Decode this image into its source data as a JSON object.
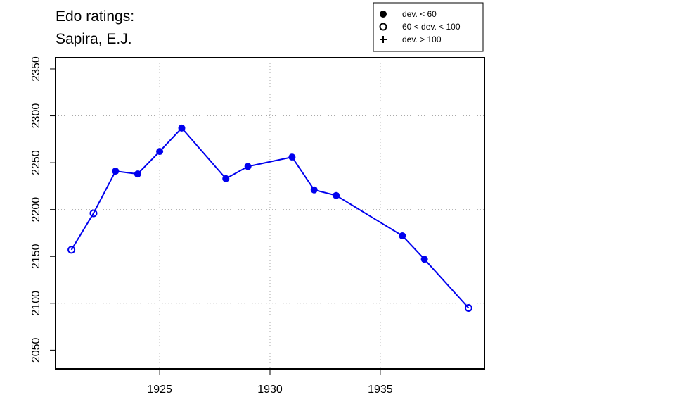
{
  "chart_data": {
    "type": "line",
    "title": [
      "Edo ratings:",
      "Sapira, E.J."
    ],
    "x": [
      1921,
      1922,
      1923,
      1924,
      1925,
      1926,
      1928,
      1929,
      1931,
      1932,
      1933,
      1936,
      1937,
      1939
    ],
    "series": [
      {
        "color": "#0000ee",
        "values": [
          2157,
          2196,
          2241,
          2238,
          2262,
          2287,
          2233,
          2246,
          2256,
          2221,
          2215,
          2172,
          2147,
          2095
        ],
        "markers": [
          "open",
          "open",
          "filled",
          "filled",
          "filled",
          "filled",
          "filled",
          "filled",
          "filled",
          "filled",
          "filled",
          "filled",
          "filled",
          "open"
        ]
      }
    ],
    "xlim": [
      1920.28,
      1939.72
    ],
    "ylim": [
      2030,
      2362
    ],
    "xticks": [
      1925,
      1930,
      1935
    ],
    "yticks": [
      2050,
      2100,
      2150,
      2200,
      2250,
      2300,
      2350
    ],
    "xgrid": [
      1925,
      1930,
      1935
    ],
    "ygrid": [
      2100,
      2200,
      2300
    ],
    "legend": {
      "position": "top-right",
      "entries": [
        {
          "label": "dev. < 60",
          "marker": "filled"
        },
        {
          "label": "60 < dev. < 100",
          "marker": "open"
        },
        {
          "label": "dev. > 100",
          "marker": "plus"
        }
      ]
    }
  }
}
